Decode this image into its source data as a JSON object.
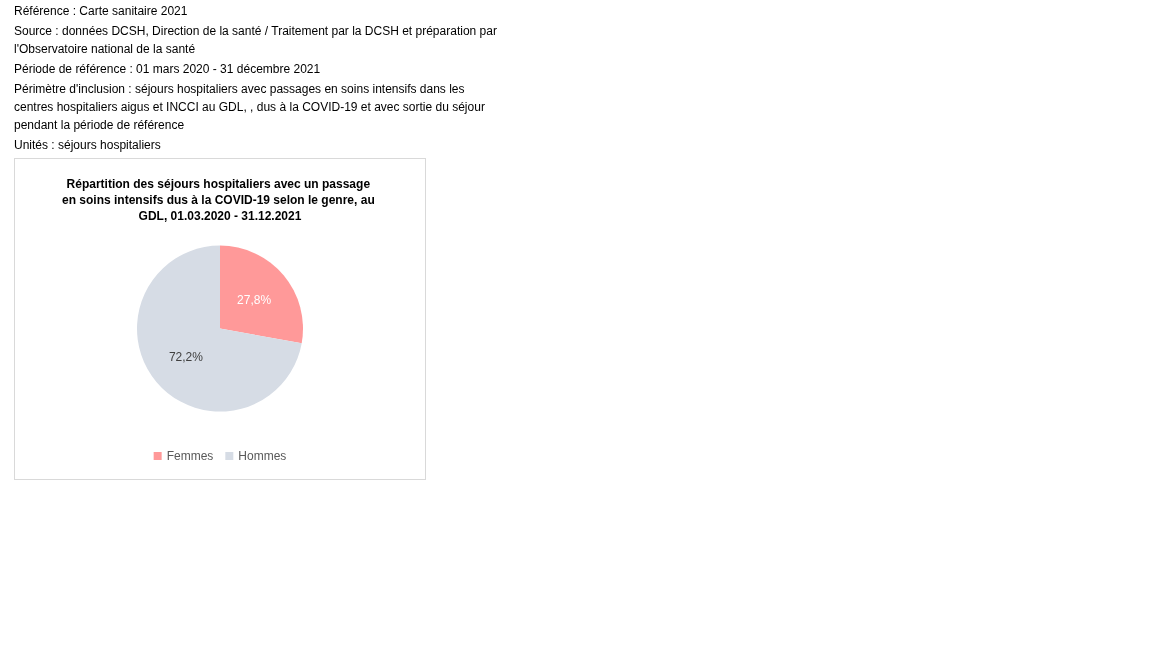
{
  "chart_data": {
    "type": "pie",
    "title": "Répartition des séjours hospitaliers avec un passage en soins intensifs dus à la COVID-19 selon le genre, au GDL, 01.03.2020 - 31.12.2021",
    "annotations": [
      "Référence : Carte sanitaire 2021",
      "Source : données DCSH, Direction de la santé / Traitement par la DCSH et préparation par l'Observatoire national de la santé",
      "Période de référence : 01 mars 2020 - 31 décembre 2021",
      "Périmètre d'inclusion : séjours hospitaliers avec passages en soins intensifs dans les centres hospitaliers aigus et INCCI au GDL, , dus à la COVID-19 et avec sortie du séjour pendant la période de référence",
      "Unités : séjours hospitaliers"
    ],
    "categories": [
      "Femmes",
      "Hommes"
    ],
    "values": [
      27.8,
      72.2
    ],
    "colors": [
      "#ff9999",
      "#d6dce5"
    ],
    "value_labels": [
      "27,8%",
      "72,2%"
    ],
    "legend": "bottom"
  }
}
